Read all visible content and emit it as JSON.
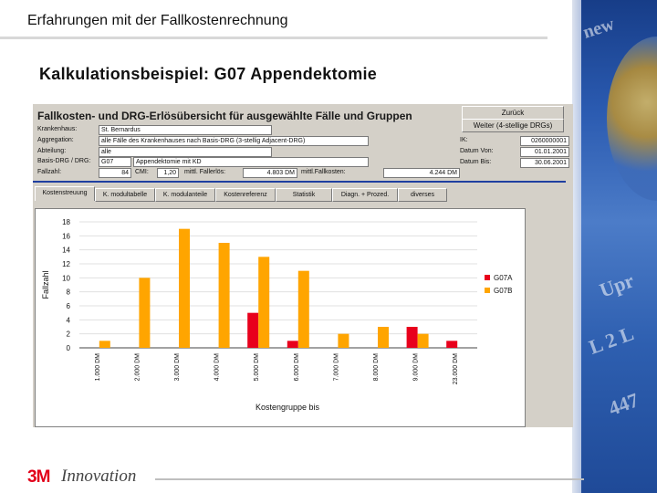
{
  "slide": {
    "title": "Erfahrungen mit der Fallkostenrechnung",
    "subtitle": "Kalkulationsbeispiel: G07 Appendektomie"
  },
  "app": {
    "title": "Fallkosten- und DRG-Erlösübersicht für ausgewählte Fälle und Gruppen",
    "back_button": "Zurück",
    "next_button": "Weiter (4-stellige DRGs)",
    "form": {
      "krankenhaus_label": "Krankenhaus:",
      "krankenhaus_value": "St. Bernardus",
      "aggregation_label": "Aggregation:",
      "aggregation_value": "alle Fälle des Krankenhauses nach Basis-DRG (3-stellig Adjacent-DRG)",
      "abteilung_label": "Abteilung:",
      "abteilung_value": "alle",
      "basisdrg_label": "Basis-DRG / DRG:",
      "basisdrg_code": "G07",
      "basisdrg_name": "Appendektomie mit KD",
      "fallzahl_label": "Fallzahl:",
      "fallzahl_value": "84",
      "cmi_label": "CMI:",
      "cmi_value": "1,20",
      "erloes_label": "mittl. Fallerlös:",
      "erloes_value": "4.803 DM",
      "kosten_label": "mittl.Fallkosten:",
      "kosten_value": "4.244 DM",
      "ik_label": "IK:",
      "ik_value": "0260000001",
      "datum_von_label": "Datum Von:",
      "datum_von_value": "01.01.2001",
      "datum_bis_label": "Datum Bis:",
      "datum_bis_value": "30.06.2001"
    },
    "tabs": [
      "Kostenstreuung",
      "K. modultabelle",
      "K. modulanteile",
      "Kostenreferenz",
      "Statistik",
      "Diagn. + Prozed.",
      "diverses"
    ]
  },
  "chart_data": {
    "type": "bar",
    "categories": [
      "1.000 DM",
      "2.000 DM",
      "3.000 DM",
      "4.000 DM",
      "5.000 DM",
      "6.000 DM",
      "7.000 DM",
      "8.000 DM",
      "9.000 DM",
      "23.000 DM"
    ],
    "series": [
      {
        "name": "G07A",
        "color": "#e8001c",
        "values": [
          0,
          0,
          0,
          0,
          5,
          1,
          0,
          0,
          3,
          1
        ]
      },
      {
        "name": "G07B",
        "color": "#ffa500",
        "values": [
          1,
          10,
          17,
          15,
          13,
          11,
          2,
          3,
          2,
          0
        ]
      }
    ],
    "xlabel": "Kostengruppe bis",
    "ylabel": "Fallzahl",
    "ylim": [
      0,
      18
    ],
    "yticks": [
      0,
      2,
      4,
      6,
      8,
      10,
      12,
      14,
      16,
      18
    ],
    "legend": "right"
  },
  "brand": {
    "logo_3m": "3M",
    "logo_text": "Innovation",
    "accent": "#e2001a"
  }
}
